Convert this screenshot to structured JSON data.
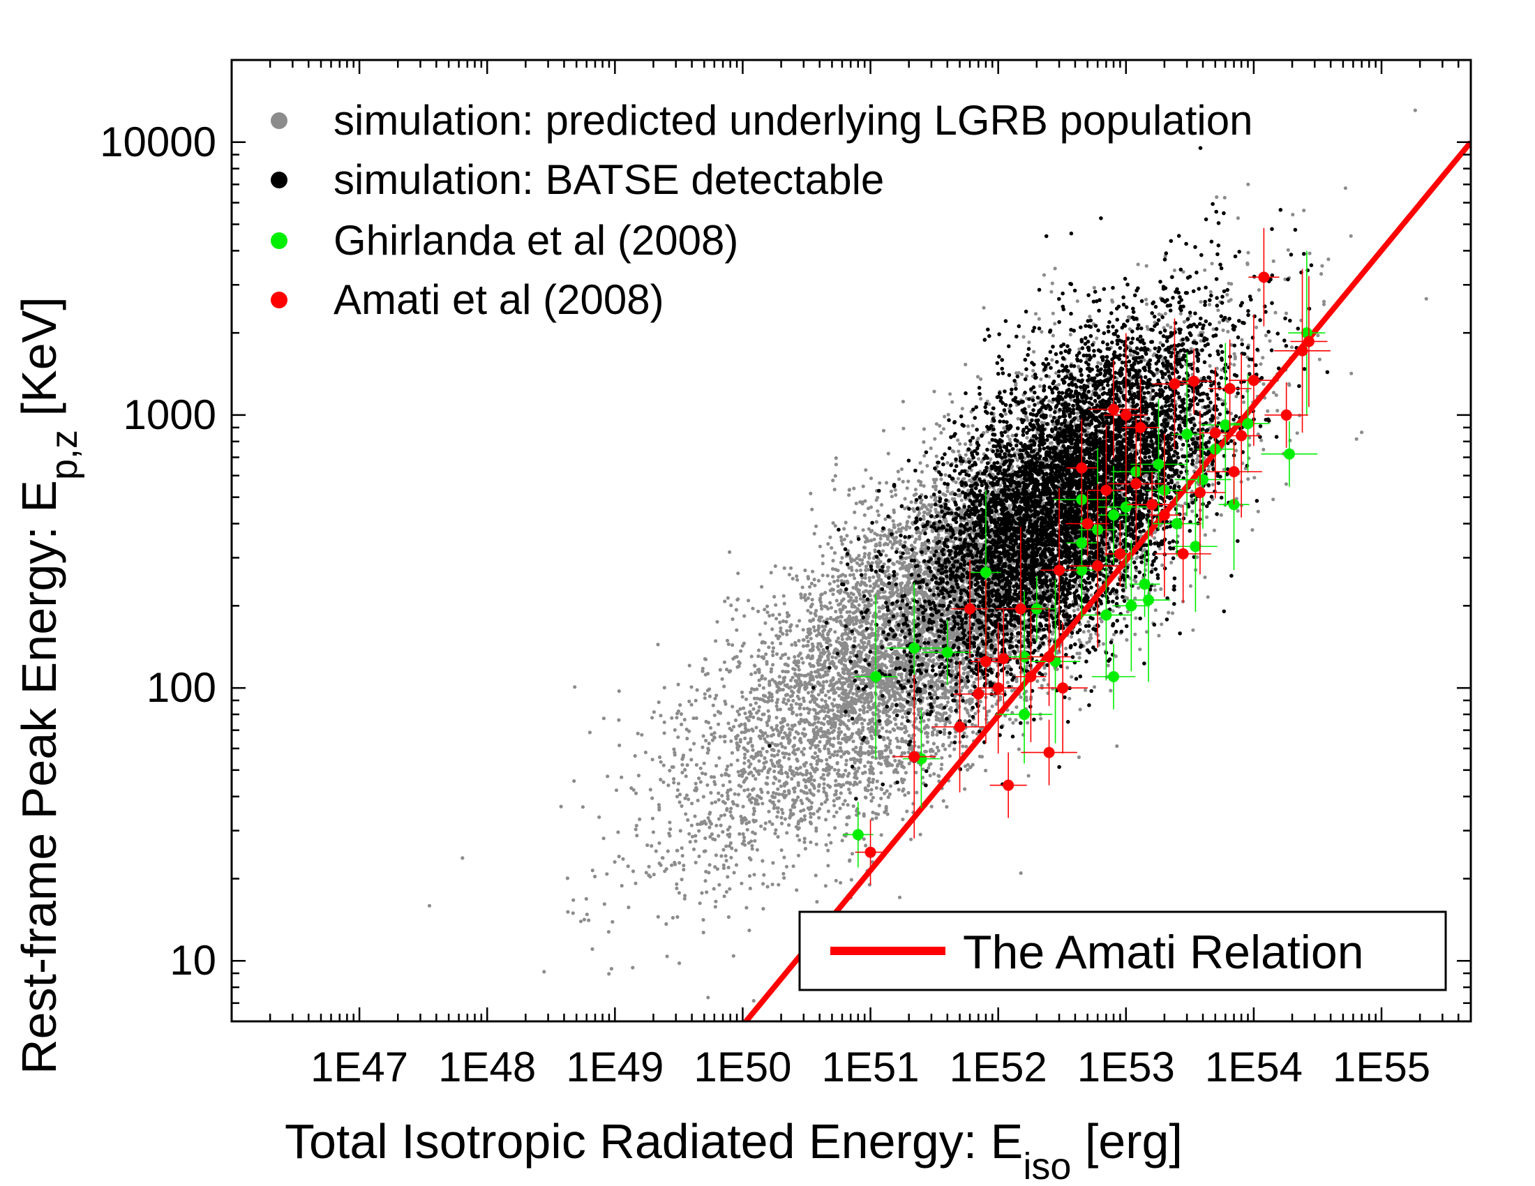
{
  "chart_data": {
    "type": "scatter",
    "xscale": "log",
    "yscale": "log",
    "xlim": [
      1e+46,
      5e+55
    ],
    "ylim": [
      6,
      20000
    ],
    "xlabel_main": "Total Isotropic Radiated Energy: E",
    "xlabel_sub": "iso",
    "xlabel_unit": " [erg]",
    "ylabel_main": "Rest-frame Peak Energy: E",
    "ylabel_sub": "p,z",
    "ylabel_unit": " [KeV]",
    "x_ticks": [
      {
        "value": 1e+47,
        "label": "1E47"
      },
      {
        "value": 1e+48,
        "label": "1E48"
      },
      {
        "value": 1e+49,
        "label": "1E49"
      },
      {
        "value": 1e+50,
        "label": "1E50"
      },
      {
        "value": 1e+51,
        "label": "1E51"
      },
      {
        "value": 1e+52,
        "label": "1E52"
      },
      {
        "value": 1e+53,
        "label": "1E53"
      },
      {
        "value": 1e+54,
        "label": "1E54"
      },
      {
        "value": 1e+55,
        "label": "1E55"
      }
    ],
    "y_ticks": [
      {
        "value": 10,
        "label": "10"
      },
      {
        "value": 100,
        "label": "100"
      },
      {
        "value": 1000,
        "label": "1000"
      },
      {
        "value": 10000,
        "label": "10000"
      }
    ],
    "legend_top_left": [
      {
        "label": "simulation: predicted underlying LGRB population",
        "color": "#8c8c8c"
      },
      {
        "label": "simulation: BATSE detectable",
        "color": "#000000"
      },
      {
        "label": "Ghirlanda et al (2008)",
        "color": "#00ee00"
      },
      {
        "label": "Amati et al (2008)",
        "color": "#ff0000"
      }
    ],
    "legend_bottom_right": [
      {
        "label": "The Amati Relation",
        "color": "#ff0000"
      }
    ],
    "series": [
      {
        "name": "simulation: predicted underlying LGRB population",
        "color": "#8c8c8c",
        "kind": "cloud",
        "count": 9000,
        "center_log_eiso": 51.6,
        "center_log_epz": 2.3,
        "sigma_log_eiso": 0.95,
        "sigma_log_epz": 0.42,
        "correlation": 0.78
      },
      {
        "name": "simulation: BATSE detectable",
        "color": "#000000",
        "kind": "cloud",
        "count": 7000,
        "center_log_eiso": 52.55,
        "center_log_epz": 2.7,
        "sigma_log_eiso": 0.6,
        "sigma_log_epz": 0.32,
        "correlation": 0.62
      },
      {
        "name": "Ghirlanda et al (2008)",
        "color": "#00ee00",
        "points": [
          {
            "x": 8e+50,
            "y": 29
          },
          {
            "x": 1.1e+51,
            "y": 110
          },
          {
            "x": 2.2e+51,
            "y": 140
          },
          {
            "x": 2.5e+51,
            "y": 55
          },
          {
            "x": 4e+51,
            "y": 135
          },
          {
            "x": 8e+51,
            "y": 265
          },
          {
            "x": 1.6e+52,
            "y": 130
          },
          {
            "x": 1.6e+52,
            "y": 80
          },
          {
            "x": 2e+52,
            "y": 195
          },
          {
            "x": 2.8e+52,
            "y": 125
          },
          {
            "x": 4.5e+52,
            "y": 340
          },
          {
            "x": 4.5e+52,
            "y": 270
          },
          {
            "x": 4.5e+52,
            "y": 490
          },
          {
            "x": 6e+52,
            "y": 380
          },
          {
            "x": 7e+52,
            "y": 185
          },
          {
            "x": 8e+52,
            "y": 430
          },
          {
            "x": 8e+52,
            "y": 110
          },
          {
            "x": 1e+53,
            "y": 460
          },
          {
            "x": 1.1e+53,
            "y": 200
          },
          {
            "x": 1.2e+53,
            "y": 620
          },
          {
            "x": 1.4e+53,
            "y": 240
          },
          {
            "x": 1.5e+53,
            "y": 210
          },
          {
            "x": 1.8e+53,
            "y": 660
          },
          {
            "x": 2e+53,
            "y": 530
          },
          {
            "x": 2.5e+53,
            "y": 400
          },
          {
            "x": 3e+53,
            "y": 850
          },
          {
            "x": 3.5e+53,
            "y": 330
          },
          {
            "x": 4e+53,
            "y": 580
          },
          {
            "x": 5e+53,
            "y": 750
          },
          {
            "x": 6e+53,
            "y": 920
          },
          {
            "x": 7e+53,
            "y": 470
          },
          {
            "x": 9e+53,
            "y": 930
          },
          {
            "x": 1.9e+54,
            "y": 720
          },
          {
            "x": 2.6e+54,
            "y": 2000
          }
        ]
      },
      {
        "name": "Amati et al (2008)",
        "color": "#ff0000",
        "points": [
          {
            "x": 1e+51,
            "y": 25
          },
          {
            "x": 2.2e+51,
            "y": 56
          },
          {
            "x": 5e+51,
            "y": 72
          },
          {
            "x": 6e+51,
            "y": 195
          },
          {
            "x": 7e+51,
            "y": 95
          },
          {
            "x": 8e+51,
            "y": 125
          },
          {
            "x": 1e+52,
            "y": 100
          },
          {
            "x": 1.1e+52,
            "y": 128
          },
          {
            "x": 1.2e+52,
            "y": 44
          },
          {
            "x": 1.5e+52,
            "y": 195
          },
          {
            "x": 1.8e+52,
            "y": 110
          },
          {
            "x": 2.5e+52,
            "y": 130
          },
          {
            "x": 2.5e+52,
            "y": 58
          },
          {
            "x": 3e+52,
            "y": 270
          },
          {
            "x": 3.2e+52,
            "y": 100
          },
          {
            "x": 4.5e+52,
            "y": 640
          },
          {
            "x": 5e+52,
            "y": 400
          },
          {
            "x": 6e+52,
            "y": 280
          },
          {
            "x": 7e+52,
            "y": 530
          },
          {
            "x": 8e+52,
            "y": 1050
          },
          {
            "x": 9e+52,
            "y": 310
          },
          {
            "x": 1e+53,
            "y": 1000
          },
          {
            "x": 1.2e+53,
            "y": 560
          },
          {
            "x": 1.3e+53,
            "y": 900
          },
          {
            "x": 1.6e+53,
            "y": 470
          },
          {
            "x": 2e+53,
            "y": 430
          },
          {
            "x": 2.4e+53,
            "y": 1300
          },
          {
            "x": 2.8e+53,
            "y": 310
          },
          {
            "x": 3.4e+53,
            "y": 1330
          },
          {
            "x": 3.8e+53,
            "y": 520
          },
          {
            "x": 5e+53,
            "y": 860
          },
          {
            "x": 6.5e+53,
            "y": 1250
          },
          {
            "x": 7e+53,
            "y": 620
          },
          {
            "x": 8e+53,
            "y": 840
          },
          {
            "x": 1e+54,
            "y": 1340
          },
          {
            "x": 1.2e+54,
            "y": 3200
          },
          {
            "x": 1.8e+54,
            "y": 1000
          },
          {
            "x": 2.4e+54,
            "y": 1720
          },
          {
            "x": 2.7e+54,
            "y": 1860
          }
        ]
      },
      {
        "name": "The Amati Relation",
        "color": "#ff0000",
        "kind": "line",
        "x": [
          1e+50,
          5e+55
        ],
        "y": [
          5.8,
          10000
        ]
      }
    ]
  }
}
